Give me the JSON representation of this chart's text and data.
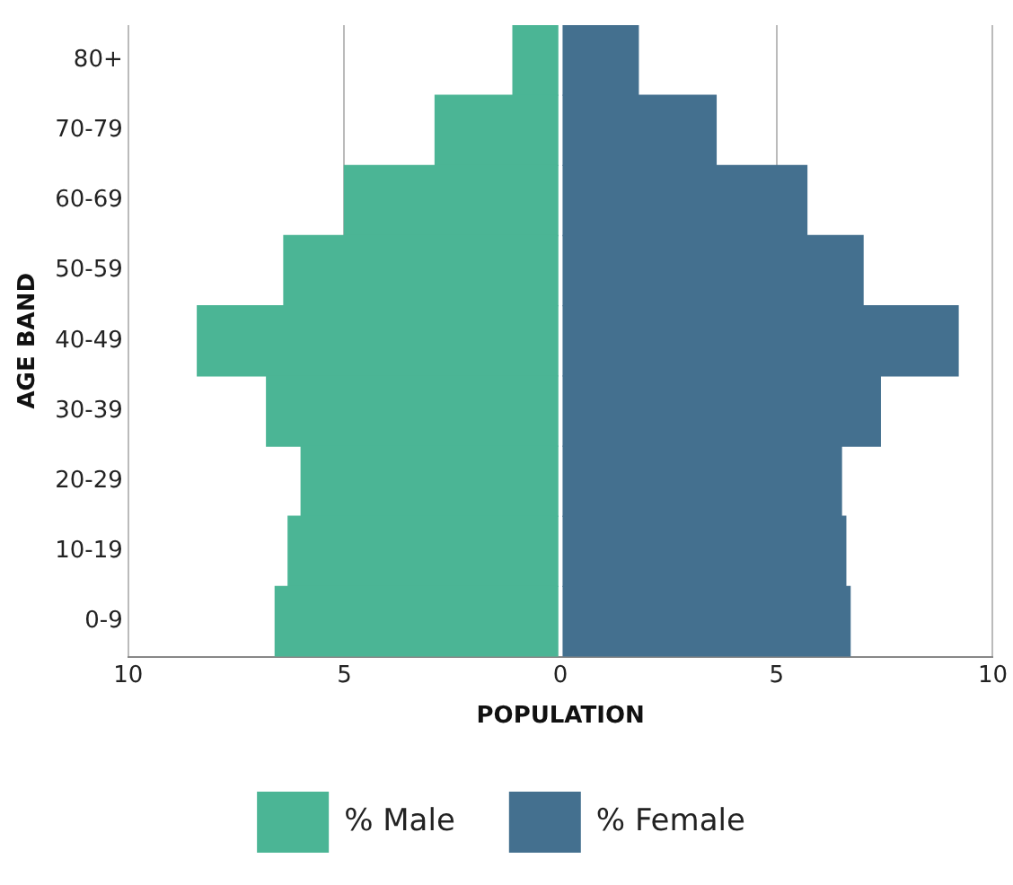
{
  "chart_data": {
    "type": "bar",
    "orientation": "horizontal",
    "stacked": true,
    "xlabel": "POPULATION",
    "ylabel": "AGE BAND",
    "categories": [
      "80+",
      "70-79",
      "60-69",
      "50-59",
      "40-49",
      "30-39",
      "20-29",
      "10-19",
      "0-9"
    ],
    "series": [
      {
        "name": "% Male",
        "color": "#4bb595",
        "values": [
          -1.1,
          -2.9,
          -5.0,
          -6.4,
          -8.4,
          -6.8,
          -6.0,
          -6.3,
          -6.6
        ]
      },
      {
        "name": "% Female",
        "color": "#44708f",
        "values": [
          1.8,
          3.6,
          5.7,
          7.0,
          9.2,
          7.4,
          6.5,
          6.6,
          6.7
        ]
      }
    ],
    "xlim": [
      -10,
      10
    ],
    "xticks": [
      {
        "value": -10,
        "label": "10"
      },
      {
        "value": -5,
        "label": "5"
      },
      0,
      5,
      10
    ],
    "grid": "x",
    "legend": "bottom"
  }
}
